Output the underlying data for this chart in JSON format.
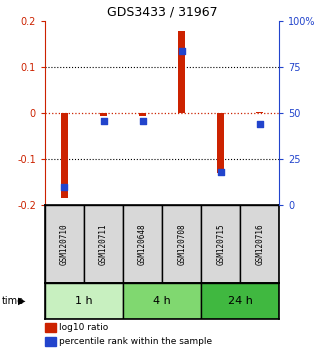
{
  "title": "GDS3433 / 31967",
  "samples": [
    "GSM120710",
    "GSM120711",
    "GSM120648",
    "GSM120708",
    "GSM120715",
    "GSM120716"
  ],
  "log10_ratio": [
    -0.185,
    -0.005,
    -0.005,
    0.178,
    -0.13,
    0.002
  ],
  "percentile_rank": [
    10,
    46,
    46,
    84,
    18,
    44
  ],
  "groups": [
    {
      "label": "1 h",
      "start": 0,
      "end": 2,
      "color": "#c8f0c0"
    },
    {
      "label": "4 h",
      "start": 2,
      "end": 4,
      "color": "#80d870"
    },
    {
      "label": "24 h",
      "start": 4,
      "end": 6,
      "color": "#40b840"
    }
  ],
  "ylim_left": [
    -0.2,
    0.2
  ],
  "ylim_right": [
    0,
    100
  ],
  "yticks_left": [
    -0.2,
    -0.1,
    0.0,
    0.1,
    0.2
  ],
  "ytick_labels_left": [
    "-0.2",
    "-0.1",
    "0",
    "0.1",
    "0.2"
  ],
  "yticks_right": [
    0,
    25,
    50,
    75,
    100
  ],
  "ytick_labels_right": [
    "0",
    "25",
    "50",
    "75",
    "100%"
  ],
  "red_color": "#cc2200",
  "blue_color": "#2244cc",
  "bar_width": 0.18,
  "square_size": 18,
  "dashed_zero_color": "#cc2200",
  "sample_box_color": "#d8d8d8",
  "legend_red_label": "log10 ratio",
  "legend_blue_label": "percentile rank within the sample"
}
